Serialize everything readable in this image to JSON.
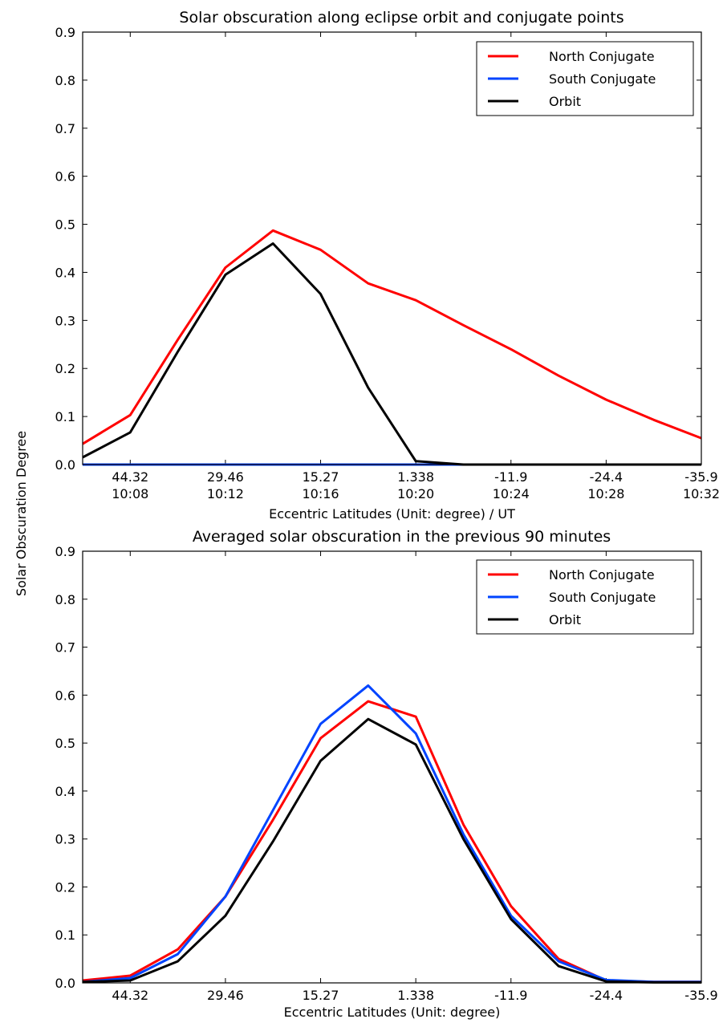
{
  "figure": {
    "shared_ylabel": "Solar Obscuration Degree"
  },
  "chart_data": [
    {
      "type": "line",
      "title": "Solar obscuration along eclipse orbit and conjugate points",
      "xlabel": "Eccentric Latitudes (Unit: degree) / UT",
      "ylabel": "Solar Obscuration Degree",
      "ylim": [
        0,
        0.9
      ],
      "yticks": [
        "0.0",
        "0.1",
        "0.2",
        "0.3",
        "0.4",
        "0.5",
        "0.6",
        "0.7",
        "0.8",
        "0.9"
      ],
      "xtick_labels": [
        "44.32",
        "29.46",
        "15.27",
        "1.338",
        "-11.9",
        "-24.4",
        "-35.9"
      ],
      "xtick_time_labels": [
        "10:08",
        "10:12",
        "10:16",
        "10:20",
        "10:24",
        "10:28",
        "10:32"
      ],
      "x_index": [
        0,
        1,
        2,
        3,
        4,
        5,
        6,
        7,
        8,
        9,
        10,
        11,
        12,
        13
      ],
      "grid": false,
      "legend_position": "upper-right",
      "series": [
        {
          "name": "North Conjugate",
          "color": "#ff0000",
          "values": [
            0.043,
            0.103,
            0.26,
            0.41,
            0.487,
            0.447,
            0.377,
            0.342,
            0.29,
            0.24,
            0.185,
            0.135,
            0.093,
            0.055
          ]
        },
        {
          "name": "South Conjugate",
          "color": "#0044ff",
          "values": [
            0.0,
            0.0,
            0.0,
            0.0,
            0.0,
            0.0,
            0.0,
            0.0,
            0.0,
            0.0,
            0.0,
            0.0,
            0.0,
            0.0
          ]
        },
        {
          "name": "Orbit",
          "color": "#000000",
          "values": [
            0.015,
            0.067,
            0.235,
            0.395,
            0.46,
            0.355,
            0.16,
            0.007,
            0.0,
            0.0,
            0.0,
            0.0,
            0.0,
            0.0
          ]
        }
      ]
    },
    {
      "type": "line",
      "title": "Averaged solar obscuration in the previous 90 minutes",
      "xlabel": "Eccentric Latitudes (Unit: degree)",
      "ylabel": "Solar Obscuration Degree",
      "ylim": [
        0,
        0.9
      ],
      "yticks": [
        "0.0",
        "0.1",
        "0.2",
        "0.3",
        "0.4",
        "0.5",
        "0.6",
        "0.7",
        "0.8",
        "0.9"
      ],
      "xtick_labels": [
        "44.32",
        "29.46",
        "15.27",
        "1.338",
        "-11.9",
        "-24.4",
        "-35.9"
      ],
      "x_index": [
        0,
        1,
        2,
        3,
        4,
        5,
        6,
        7,
        8,
        9,
        10,
        11,
        12,
        13
      ],
      "grid": false,
      "legend_position": "upper-right",
      "series": [
        {
          "name": "North Conjugate",
          "color": "#ff0000",
          "values": [
            0.005,
            0.015,
            0.07,
            0.18,
            0.34,
            0.51,
            0.587,
            0.555,
            0.33,
            0.16,
            0.05,
            0.005,
            0.002,
            0.002
          ]
        },
        {
          "name": "South Conjugate",
          "color": "#0044ff",
          "values": [
            0.002,
            0.01,
            0.06,
            0.18,
            0.36,
            0.54,
            0.62,
            0.52,
            0.31,
            0.14,
            0.045,
            0.006,
            0.002,
            0.002
          ]
        },
        {
          "name": "Orbit",
          "color": "#000000",
          "values": [
            0.002,
            0.005,
            0.045,
            0.14,
            0.295,
            0.463,
            0.55,
            0.497,
            0.3,
            0.133,
            0.035,
            0.003,
            0.001,
            0.001
          ]
        }
      ]
    }
  ]
}
